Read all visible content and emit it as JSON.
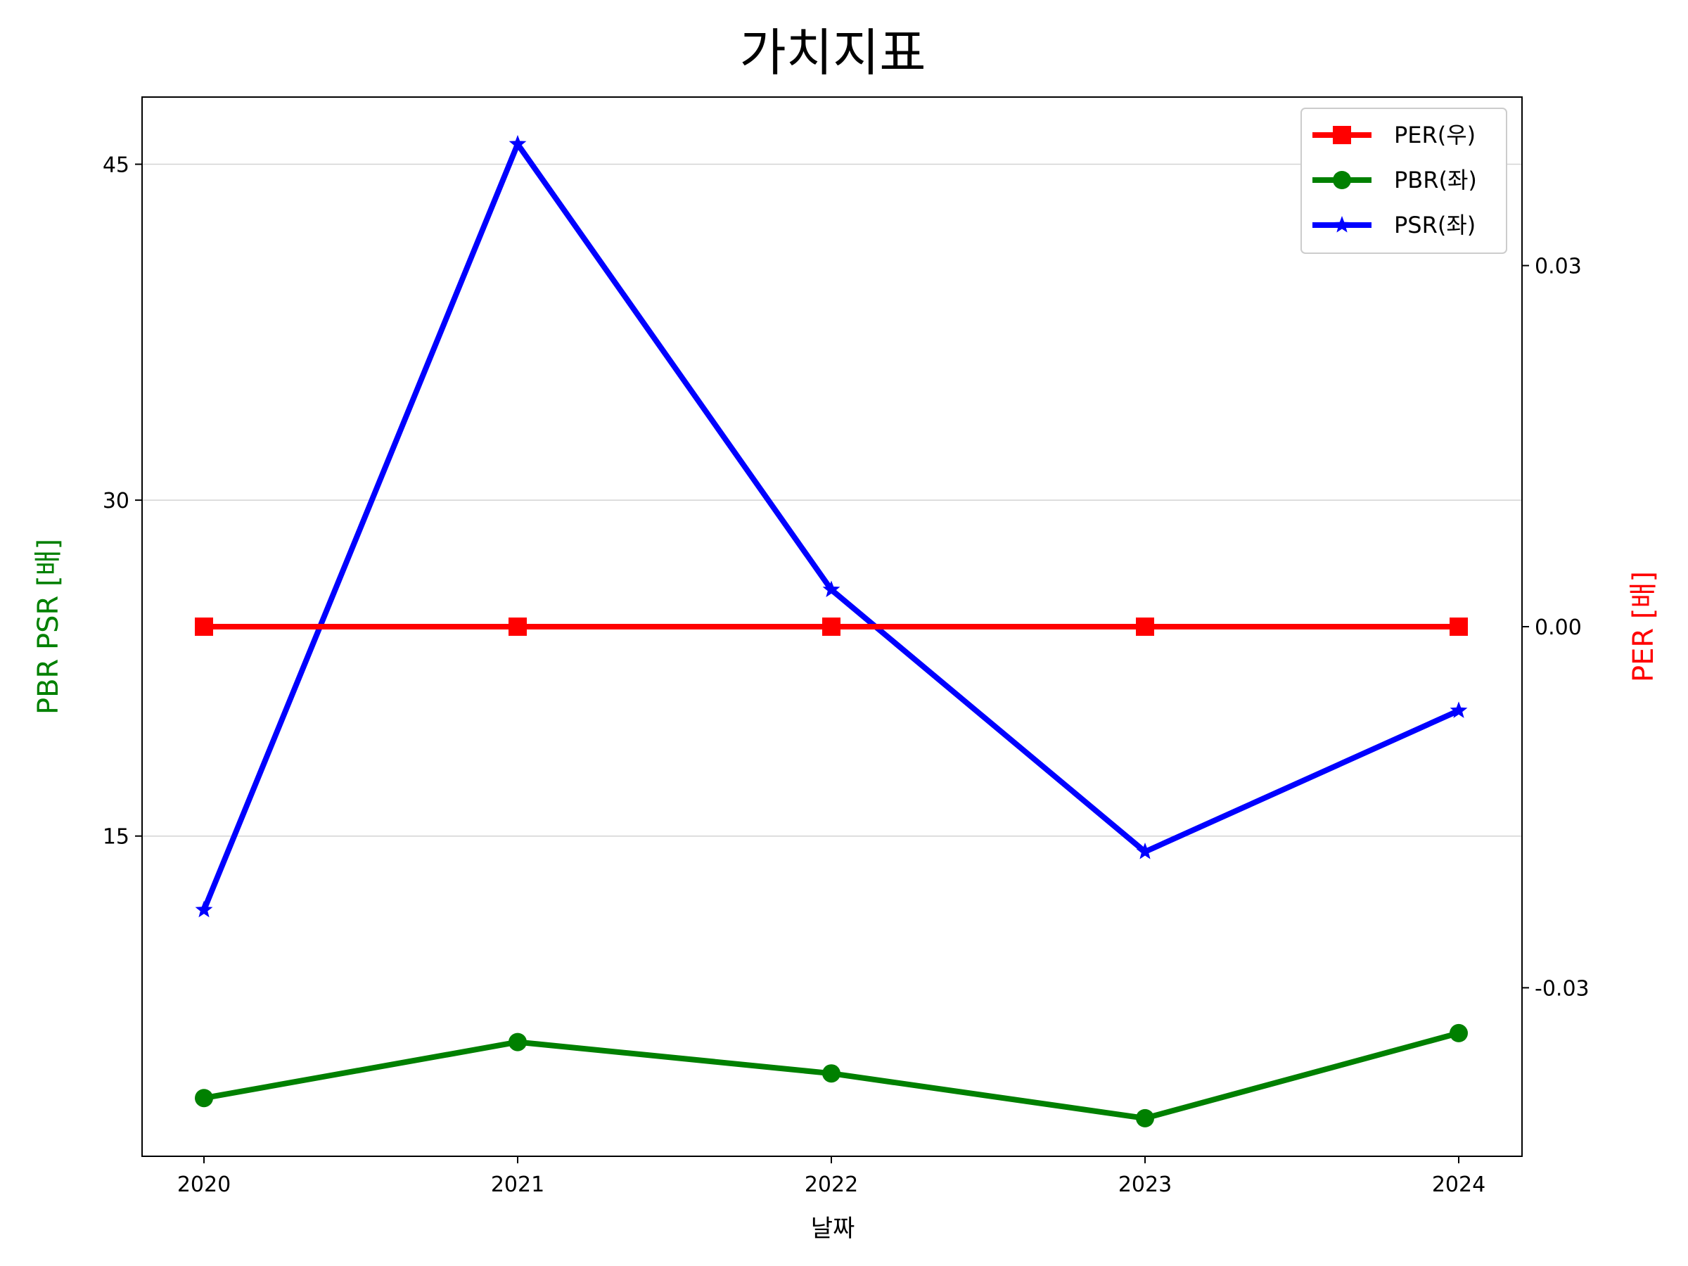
{
  "chart_data": {
    "type": "line",
    "title": "가치지표",
    "xlabel": "날짜",
    "ylabel_left": "PBR PSR [배]",
    "ylabel_right": "PER [배]",
    "x": [
      "2020",
      "2021",
      "2022",
      "2023",
      "2024"
    ],
    "ylim_left": [
      0.7,
      48.0
    ],
    "yticks_left": [
      15,
      30,
      45
    ],
    "ylim_right": [
      -0.044,
      0.044
    ],
    "yticks_right": [
      -0.03,
      0.0,
      0.03
    ],
    "ytick_labels_right": [
      "-0.03",
      "0.00",
      "0.03"
    ],
    "grid": "horizontal",
    "legend_position": "top-right",
    "series": [
      {
        "name": "PER(우)",
        "axis": "right",
        "color": "#ff0000",
        "marker": "square",
        "values": [
          0.0,
          0.0,
          0.0,
          0.0,
          0.0
        ]
      },
      {
        "name": "PBR(좌)",
        "axis": "left",
        "color": "#008000",
        "marker": "circle",
        "values": [
          3.3,
          5.8,
          4.4,
          2.4,
          6.2
        ]
      },
      {
        "name": "PSR(좌)",
        "axis": "left",
        "color": "#0000ff",
        "marker": "star",
        "values": [
          11.7,
          45.9,
          26.0,
          14.3,
          20.6
        ]
      }
    ]
  }
}
